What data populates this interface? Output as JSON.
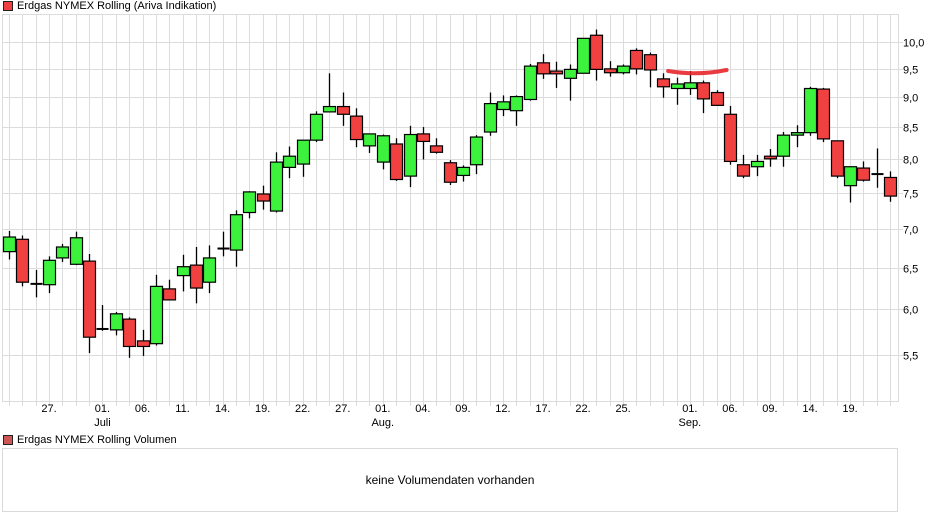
{
  "main_legend": {
    "label": "Erdgas NYMEX Rolling (Ariva Indikation)",
    "color": "#f04040"
  },
  "volume_legend": {
    "label": "Erdgas NYMEX Rolling Volumen",
    "color": "#d05555"
  },
  "volume_panel": {
    "message": "keine Volumendaten vorhanden"
  },
  "colors": {
    "up": "#3cf23c",
    "down": "#f04040",
    "grid": "#dcdcdc",
    "annotation": "#e8262b"
  },
  "chart_data": {
    "type": "candlestick",
    "title": "Erdgas NYMEX Rolling (Ariva Indikation)",
    "xlabel": "",
    "ylabel": "",
    "y_scale": "log",
    "ylim": [
      5.2,
      10.5
    ],
    "y_ticks": [
      "10,0",
      "9,5",
      "9,0",
      "8,5",
      "8,0",
      "7,5",
      "7,0",
      "6,5",
      "6,0",
      "5,5"
    ],
    "y_tick_values": [
      10.0,
      9.5,
      9.0,
      8.5,
      8.0,
      7.5,
      7.0,
      6.5,
      6.0,
      5.5
    ],
    "x_ticks": [
      {
        "label": "27.",
        "sub": "",
        "index": 3
      },
      {
        "label": "01.",
        "sub": "Juli",
        "index": 7
      },
      {
        "label": "06.",
        "sub": "",
        "index": 10
      },
      {
        "label": "11.",
        "sub": "",
        "index": 13
      },
      {
        "label": "14.",
        "sub": "",
        "index": 16
      },
      {
        "label": "19.",
        "sub": "",
        "index": 19
      },
      {
        "label": "22.",
        "sub": "",
        "index": 22
      },
      {
        "label": "27.",
        "sub": "",
        "index": 25
      },
      {
        "label": "01.",
        "sub": "Aug.",
        "index": 28
      },
      {
        "label": "04.",
        "sub": "",
        "index": 31
      },
      {
        "label": "09.",
        "sub": "",
        "index": 34
      },
      {
        "label": "12.",
        "sub": "",
        "index": 37
      },
      {
        "label": "17.",
        "sub": "",
        "index": 40
      },
      {
        "label": "22.",
        "sub": "",
        "index": 43
      },
      {
        "label": "25.",
        "sub": "",
        "index": 46
      },
      {
        "label": "01.",
        "sub": "Sep.",
        "index": 51
      },
      {
        "label": "06.",
        "sub": "",
        "index": 54
      },
      {
        "label": "09.",
        "sub": "",
        "index": 57
      },
      {
        "label": "14.",
        "sub": "",
        "index": 60
      },
      {
        "label": "19.",
        "sub": "",
        "index": 63
      }
    ],
    "grid": true,
    "legend_position": "top-left",
    "annotations": [
      {
        "type": "freehand-line",
        "color": "#e8262b",
        "from_index": 49,
        "to_index": 53,
        "approx_value": 9.45
      }
    ],
    "candles": [
      {
        "o": 6.7,
        "h": 6.97,
        "l": 6.6,
        "c": 6.89
      },
      {
        "o": 6.86,
        "h": 6.91,
        "l": 6.27,
        "c": 6.32
      },
      {
        "o": 6.3,
        "h": 6.47,
        "l": 6.14,
        "c": 6.3
      },
      {
        "o": 6.29,
        "h": 6.64,
        "l": 6.19,
        "c": 6.59
      },
      {
        "o": 6.62,
        "h": 6.8,
        "l": 6.57,
        "c": 6.76
      },
      {
        "o": 6.54,
        "h": 6.96,
        "l": 6.53,
        "c": 6.88
      },
      {
        "o": 6.58,
        "h": 6.67,
        "l": 5.52,
        "c": 5.69
      },
      {
        "o": 5.78,
        "h": 6.05,
        "l": 5.76,
        "c": 5.78
      },
      {
        "o": 5.77,
        "h": 5.97,
        "l": 5.71,
        "c": 5.95
      },
      {
        "o": 5.89,
        "h": 5.91,
        "l": 5.47,
        "c": 5.59
      },
      {
        "o": 5.65,
        "h": 5.77,
        "l": 5.49,
        "c": 5.59
      },
      {
        "o": 5.62,
        "h": 6.41,
        "l": 5.6,
        "c": 6.27
      },
      {
        "o": 6.24,
        "h": 6.35,
        "l": 6.12,
        "c": 6.11
      },
      {
        "o": 6.4,
        "h": 6.66,
        "l": 6.21,
        "c": 6.51
      },
      {
        "o": 6.53,
        "h": 6.76,
        "l": 6.07,
        "c": 6.25
      },
      {
        "o": 6.32,
        "h": 6.78,
        "l": 6.19,
        "c": 6.62
      },
      {
        "o": 6.74,
        "h": 6.96,
        "l": 6.64,
        "c": 6.74
      },
      {
        "o": 6.72,
        "h": 7.25,
        "l": 6.51,
        "c": 7.19
      },
      {
        "o": 7.22,
        "h": 7.52,
        "l": 7.14,
        "c": 7.51
      },
      {
        "o": 7.48,
        "h": 7.6,
        "l": 7.26,
        "c": 7.38
      },
      {
        "o": 7.24,
        "h": 8.1,
        "l": 7.22,
        "c": 7.95
      },
      {
        "o": 7.87,
        "h": 8.19,
        "l": 7.71,
        "c": 8.04
      },
      {
        "o": 7.92,
        "h": 8.28,
        "l": 7.73,
        "c": 8.29
      },
      {
        "o": 8.29,
        "h": 8.76,
        "l": 8.26,
        "c": 8.71
      },
      {
        "o": 8.75,
        "h": 9.42,
        "l": 8.75,
        "c": 8.84
      },
      {
        "o": 8.84,
        "h": 9.08,
        "l": 8.52,
        "c": 8.71
      },
      {
        "o": 8.68,
        "h": 8.81,
        "l": 8.18,
        "c": 8.3
      },
      {
        "o": 8.2,
        "h": 8.38,
        "l": 8.09,
        "c": 8.39
      },
      {
        "o": 7.95,
        "h": 8.38,
        "l": 7.84,
        "c": 8.36
      },
      {
        "o": 8.23,
        "h": 8.32,
        "l": 7.67,
        "c": 7.69
      },
      {
        "o": 7.74,
        "h": 8.52,
        "l": 7.58,
        "c": 8.38
      },
      {
        "o": 8.39,
        "h": 8.5,
        "l": 7.99,
        "c": 8.27
      },
      {
        "o": 8.2,
        "h": 8.32,
        "l": 8.08,
        "c": 8.1
      },
      {
        "o": 7.94,
        "h": 7.98,
        "l": 7.61,
        "c": 7.65
      },
      {
        "o": 7.75,
        "h": 7.9,
        "l": 7.66,
        "c": 7.87
      },
      {
        "o": 7.91,
        "h": 8.37,
        "l": 7.77,
        "c": 8.34
      },
      {
        "o": 8.42,
        "h": 9.08,
        "l": 8.36,
        "c": 8.89
      },
      {
        "o": 8.79,
        "h": 9.03,
        "l": 8.68,
        "c": 8.92
      },
      {
        "o": 8.77,
        "h": 9.03,
        "l": 8.52,
        "c": 9.01
      },
      {
        "o": 8.96,
        "h": 9.59,
        "l": 8.94,
        "c": 9.55
      },
      {
        "o": 9.61,
        "h": 9.77,
        "l": 9.32,
        "c": 9.41
      },
      {
        "o": 9.46,
        "h": 9.63,
        "l": 9.16,
        "c": 9.41
      },
      {
        "o": 9.33,
        "h": 9.58,
        "l": 8.94,
        "c": 9.49
      },
      {
        "o": 9.42,
        "h": 10.03,
        "l": 9.42,
        "c": 10.07
      },
      {
        "o": 10.13,
        "h": 10.24,
        "l": 9.29,
        "c": 9.49
      },
      {
        "o": 9.5,
        "h": 9.64,
        "l": 9.36,
        "c": 9.43
      },
      {
        "o": 9.43,
        "h": 9.58,
        "l": 9.4,
        "c": 9.55
      },
      {
        "o": 9.84,
        "h": 9.88,
        "l": 9.4,
        "c": 9.5
      },
      {
        "o": 9.76,
        "h": 9.8,
        "l": 9.17,
        "c": 9.48
      },
      {
        "o": 9.32,
        "h": 9.42,
        "l": 8.99,
        "c": 9.18
      },
      {
        "o": 9.15,
        "h": 9.34,
        "l": 8.87,
        "c": 9.23
      },
      {
        "o": 9.15,
        "h": 9.46,
        "l": 9.04,
        "c": 9.25
      },
      {
        "o": 9.25,
        "h": 9.29,
        "l": 8.73,
        "c": 8.97
      },
      {
        "o": 9.08,
        "h": 9.12,
        "l": 8.89,
        "c": 8.86
      },
      {
        "o": 8.71,
        "h": 8.85,
        "l": 7.91,
        "c": 7.96
      },
      {
        "o": 7.91,
        "h": 8.06,
        "l": 7.71,
        "c": 7.74
      },
      {
        "o": 7.88,
        "h": 8.06,
        "l": 7.74,
        "c": 7.96
      },
      {
        "o": 8.04,
        "h": 8.15,
        "l": 7.88,
        "c": 8.0
      },
      {
        "o": 8.04,
        "h": 8.42,
        "l": 7.88,
        "c": 8.37
      },
      {
        "o": 8.37,
        "h": 8.53,
        "l": 8.18,
        "c": 8.41
      },
      {
        "o": 8.41,
        "h": 9.18,
        "l": 8.36,
        "c": 9.15
      },
      {
        "o": 9.14,
        "h": 9.16,
        "l": 8.26,
        "c": 8.31
      },
      {
        "o": 8.28,
        "h": 8.28,
        "l": 7.71,
        "c": 7.74
      },
      {
        "o": 7.6,
        "h": 7.88,
        "l": 7.36,
        "c": 7.88
      },
      {
        "o": 7.86,
        "h": 7.96,
        "l": 7.66,
        "c": 7.68
      },
      {
        "o": 7.77,
        "h": 8.16,
        "l": 7.57,
        "c": 7.77
      },
      {
        "o": 7.72,
        "h": 7.81,
        "l": 7.37,
        "c": 7.45
      }
    ]
  }
}
